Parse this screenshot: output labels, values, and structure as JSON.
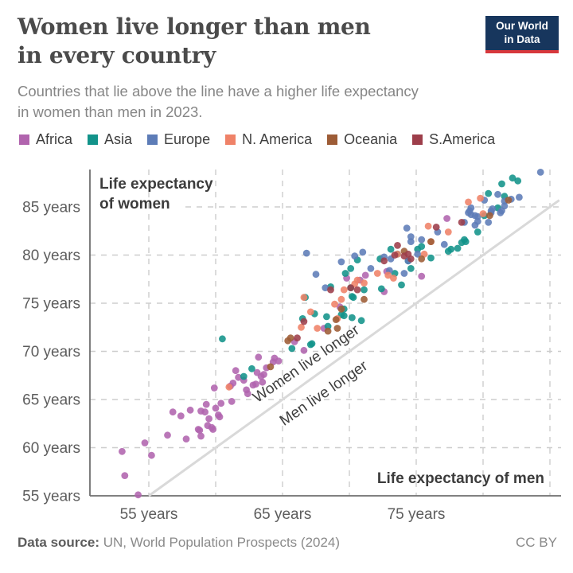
{
  "header": {
    "title_line1": "Women live longer than men",
    "title_line2": "in every country",
    "subtitle_line1": "Countries that lie above the line have a higher life expectancy",
    "subtitle_line2": "in women than men in 2023.",
    "logo_line1": "Our World",
    "logo_line2": "in Data"
  },
  "legend": [
    {
      "label": "Africa",
      "color": "#b164ae"
    },
    {
      "label": "Asia",
      "color": "#12938a"
    },
    {
      "label": "Europe",
      "color": "#5d7cb7"
    },
    {
      "label": "N. America",
      "color": "#ef8268"
    },
    {
      "label": "Oceania",
      "color": "#9d5c36"
    },
    {
      "label": "S.America",
      "color": "#9d3e4a"
    }
  ],
  "chart_data": {
    "type": "scatter",
    "title": "Women live longer than men in every country",
    "xlabel": "Life expectancy of men",
    "ylabel_line1": "Life expectancy",
    "ylabel_line2": "of women",
    "xlim": [
      50.6,
      85.7
    ],
    "ylim": [
      55,
      88.9
    ],
    "grid": true,
    "x_gridlines": [
      55,
      60,
      65,
      70,
      75,
      80,
      85
    ],
    "y_gridlines": [
      60,
      65,
      70,
      75,
      80,
      85
    ],
    "x_ticks": [
      {
        "value": 55,
        "label": "55 years"
      },
      {
        "value": 65,
        "label": "65 years"
      },
      {
        "value": 75,
        "label": "75 years"
      }
    ],
    "y_ticks": [
      {
        "value": 55,
        "label": "55 years"
      },
      {
        "value": 60,
        "label": "60 years"
      },
      {
        "value": 65,
        "label": "65 years"
      },
      {
        "value": 70,
        "label": "70 years"
      },
      {
        "value": 75,
        "label": "75 years"
      },
      {
        "value": 80,
        "label": "80 years"
      },
      {
        "value": 85,
        "label": "85 years"
      }
    ],
    "diagonal_line": "women = men (parity line)",
    "annotations": [
      {
        "text": "Women live longer",
        "side": "above-line"
      },
      {
        "text": "Men live longer",
        "side": "below-line"
      }
    ],
    "series": [
      {
        "name": "Africa",
        "color": "#b164ae",
        "points": [
          [
            54.2,
            55.1
          ],
          [
            53.2,
            57.1
          ],
          [
            54.7,
            60.5
          ],
          [
            55.2,
            59.2
          ],
          [
            53.0,
            59.6
          ],
          [
            56.4,
            61.3
          ],
          [
            58.8,
            61.8
          ],
          [
            59.4,
            62.3
          ],
          [
            59.8,
            61.9
          ],
          [
            58.9,
            61.2
          ],
          [
            58.7,
            61.9
          ],
          [
            57.8,
            60.9
          ],
          [
            59.5,
            63.0
          ],
          [
            58.9,
            63.8
          ],
          [
            57.4,
            63.3
          ],
          [
            58.1,
            63.9
          ],
          [
            60.2,
            63.4
          ],
          [
            59.2,
            63.7
          ],
          [
            60.0,
            64.1
          ],
          [
            61.2,
            64.8
          ],
          [
            60.3,
            63.2
          ],
          [
            59.7,
            62.1
          ],
          [
            60.4,
            64.6
          ],
          [
            56.8,
            63.7
          ],
          [
            59.3,
            64.5
          ],
          [
            61.7,
            67.3
          ],
          [
            62.1,
            67.0
          ],
          [
            63.8,
            68.3
          ],
          [
            61.1,
            66.4
          ],
          [
            62.4,
            65.6
          ],
          [
            61.3,
            66.7
          ],
          [
            63.1,
            67.8
          ],
          [
            63.4,
            67.4
          ],
          [
            63.0,
            66.6
          ],
          [
            64.4,
            69.3
          ],
          [
            63.5,
            66.8
          ],
          [
            64.7,
            69.0
          ],
          [
            62.8,
            66.5
          ],
          [
            59.9,
            66.2
          ],
          [
            63.2,
            69.4
          ],
          [
            61.5,
            68.0
          ],
          [
            62.3,
            66.0
          ],
          [
            64.3,
            68.9
          ],
          [
            63.6,
            67.6
          ],
          [
            66.6,
            70.1
          ],
          [
            68.1,
            72.4
          ],
          [
            69.3,
            74.6
          ],
          [
            72.6,
            76.2
          ],
          [
            72.8,
            78.3
          ],
          [
            75.4,
            77.8
          ],
          [
            70.8,
            77.4
          ],
          [
            71.2,
            77.9
          ],
          [
            69.8,
            77.6
          ],
          [
            65.9,
            71.0
          ],
          [
            77.3,
            83.8
          ]
        ]
      },
      {
        "name": "Asia",
        "color": "#12938a",
        "points": [
          [
            62.7,
            68.2
          ],
          [
            62.1,
            67.4
          ],
          [
            65.7,
            70.3
          ],
          [
            60.5,
            71.3
          ],
          [
            70.2,
            73.5
          ],
          [
            68.4,
            72.6
          ],
          [
            72.4,
            76.5
          ],
          [
            68.3,
            73.6
          ],
          [
            67.2,
            70.8
          ],
          [
            67.4,
            73.9
          ],
          [
            69.4,
            73.8
          ],
          [
            66.7,
            75.6
          ],
          [
            70.1,
            78.6
          ],
          [
            68.6,
            76.7
          ],
          [
            69.6,
            73.7
          ],
          [
            66.5,
            73.4
          ],
          [
            70.3,
            75.6
          ],
          [
            70.1,
            76.6
          ],
          [
            70.6,
            79.5
          ],
          [
            73.1,
            80.6
          ],
          [
            73.6,
            80.1
          ],
          [
            75.4,
            80.9
          ],
          [
            72.3,
            79.6
          ],
          [
            71.1,
            76.4
          ],
          [
            69.7,
            78.1
          ],
          [
            75.1,
            80.6
          ],
          [
            74.6,
            78.6
          ],
          [
            69.6,
            74.4
          ],
          [
            70.2,
            75.7
          ],
          [
            76.1,
            79.7
          ],
          [
            74.4,
            79.4
          ],
          [
            77.6,
            80.6
          ],
          [
            78.7,
            81.4
          ],
          [
            79.6,
            82.4
          ],
          [
            78.6,
            81.6
          ],
          [
            78.1,
            80.7
          ],
          [
            77.4,
            80.4
          ],
          [
            81.1,
            84.9
          ],
          [
            80.1,
            84.1
          ],
          [
            80.4,
            86.4
          ],
          [
            81.4,
            87.4
          ],
          [
            81.6,
            86.1
          ],
          [
            82.2,
            88.0
          ],
          [
            82.6,
            87.7
          ],
          [
            73.4,
            78.1
          ],
          [
            73.9,
            76.9
          ],
          [
            78.4,
            81.3
          ],
          [
            70.9,
            73.2
          ],
          [
            67.1,
            70.7
          ]
        ]
      },
      {
        "name": "Europe",
        "color": "#5d7cb7",
        "points": [
          [
            66.8,
            80.2
          ],
          [
            67.5,
            78.0
          ],
          [
            68.2,
            76.6
          ],
          [
            69.4,
            79.3
          ],
          [
            70.4,
            79.9
          ],
          [
            71.0,
            80.3
          ],
          [
            74.3,
            82.8
          ],
          [
            74.6,
            81.9
          ],
          [
            73.1,
            79.6
          ],
          [
            72.6,
            79.8
          ],
          [
            71.6,
            78.6
          ],
          [
            73.0,
            78.4
          ],
          [
            74.1,
            78.1
          ],
          [
            77.1,
            81.1
          ],
          [
            75.1,
            80.1
          ],
          [
            74.4,
            79.4
          ],
          [
            75.4,
            81.6
          ],
          [
            74.6,
            81.4
          ],
          [
            76.6,
            82.4
          ],
          [
            78.9,
            84.4
          ],
          [
            79.4,
            84.1
          ],
          [
            78.6,
            83.4
          ],
          [
            82.1,
            85.8
          ],
          [
            81.6,
            85.6
          ],
          [
            81.1,
            86.3
          ],
          [
            80.1,
            85.7
          ],
          [
            79.1,
            84.9
          ],
          [
            79.1,
            84.2
          ],
          [
            80.6,
            84.6
          ],
          [
            79.4,
            83.1
          ],
          [
            80.6,
            84.4
          ],
          [
            80.4,
            83.4
          ],
          [
            79.6,
            84.0
          ],
          [
            80.7,
            84.8
          ],
          [
            79.6,
            83.5
          ],
          [
            81.4,
            84.6
          ],
          [
            81.6,
            85.1
          ],
          [
            79.0,
            84.6
          ],
          [
            81.3,
            84.4
          ],
          [
            84.3,
            88.6
          ],
          [
            82.7,
            86.0
          ]
        ]
      },
      {
        "name": "N. America",
        "color": "#ef8268",
        "points": [
          [
            61.0,
            66.3
          ],
          [
            66.4,
            72.5
          ],
          [
            67.6,
            72.4
          ],
          [
            71.1,
            77.1
          ],
          [
            66.6,
            75.6
          ],
          [
            67.1,
            74.1
          ],
          [
            70.4,
            77.0
          ],
          [
            69.1,
            73.4
          ],
          [
            69.6,
            76.4
          ],
          [
            75.6,
            80.1
          ],
          [
            72.1,
            78.1
          ],
          [
            73.6,
            80.1
          ],
          [
            77.4,
            82.4
          ],
          [
            76.1,
            81.4
          ],
          [
            80.0,
            84.3
          ],
          [
            70.6,
            77.4
          ],
          [
            73.3,
            77.6
          ],
          [
            69.4,
            75.4
          ],
          [
            72.9,
            77.9
          ],
          [
            75.9,
            83.0
          ],
          [
            68.9,
            74.9
          ],
          [
            79.8,
            85.9
          ],
          [
            78.9,
            85.5
          ]
        ]
      },
      {
        "name": "Oceania",
        "color": "#9d5c36",
        "points": [
          [
            64.1,
            68.4
          ],
          [
            65.4,
            71.1
          ],
          [
            69.1,
            72.4
          ],
          [
            68.4,
            72.1
          ],
          [
            65.6,
            71.4
          ],
          [
            71.1,
            75.4
          ],
          [
            69.4,
            74.4
          ],
          [
            69.0,
            73.3
          ],
          [
            74.1,
            80.4
          ],
          [
            75.4,
            79.6
          ],
          [
            76.1,
            81.4
          ],
          [
            81.9,
            85.7
          ],
          [
            80.5,
            84.1
          ]
        ]
      },
      {
        "name": "S.America",
        "color": "#9d3e4a",
        "points": [
          [
            66.1,
            71.4
          ],
          [
            68.6,
            76.4
          ],
          [
            66.6,
            73.1
          ],
          [
            70.1,
            76.6
          ],
          [
            70.6,
            76.4
          ],
          [
            72.6,
            79.4
          ],
          [
            74.1,
            79.9
          ],
          [
            74.4,
            80.1
          ],
          [
            74.6,
            79.6
          ],
          [
            73.4,
            80.0
          ],
          [
            73.6,
            81.0
          ],
          [
            78.4,
            83.4
          ],
          [
            76.5,
            82.9
          ]
        ]
      }
    ]
  },
  "footer": {
    "source_label": "Data source:",
    "source_text": "UN, World Population Prospects (2024)",
    "license": "CC BY"
  }
}
